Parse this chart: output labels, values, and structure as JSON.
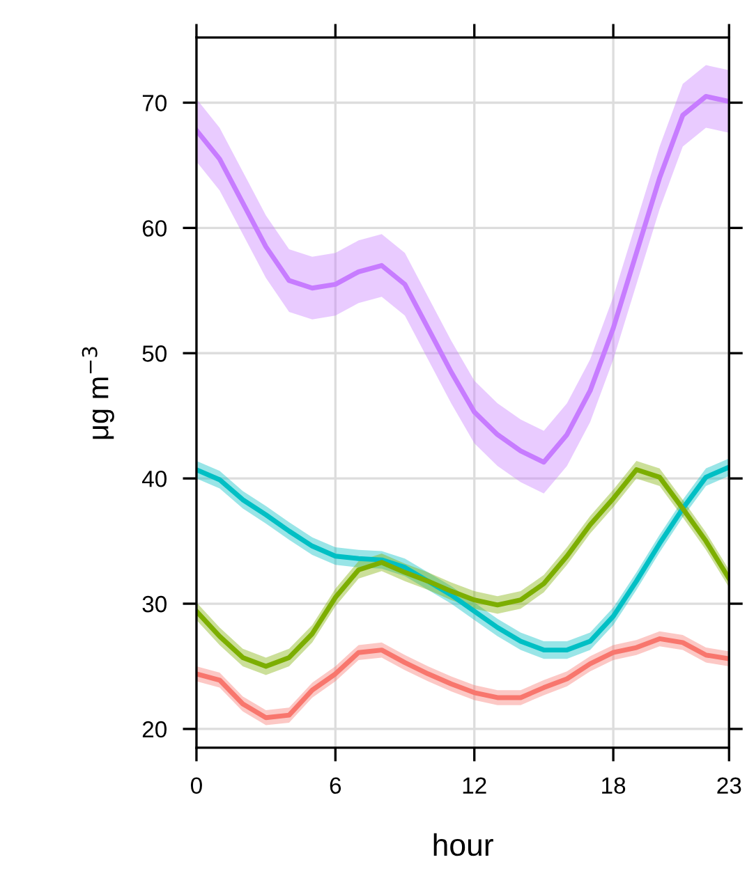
{
  "chart_data": {
    "type": "line",
    "xlabel": "hour",
    "ylabel": "μg m$^{−3}$",
    "x": [
      0,
      1,
      2,
      3,
      4,
      5,
      6,
      7,
      8,
      9,
      10,
      11,
      12,
      13,
      14,
      15,
      16,
      17,
      18,
      19,
      20,
      21,
      22,
      23
    ],
    "xlim": [
      0,
      23
    ],
    "xticks": [
      0,
      6,
      12,
      18,
      23
    ],
    "ylim": [
      18.5,
      75.2
    ],
    "yticks": [
      20,
      30,
      40,
      50,
      60,
      70
    ],
    "grid": true,
    "line_style": "solid",
    "marker": "none",
    "series": [
      {
        "color": "#c77cff",
        "values": [
          67.8,
          65.5,
          62,
          58.5,
          55.8,
          55.2,
          55.5,
          56.5,
          57,
          55.5,
          52,
          48.5,
          45.3,
          43.5,
          42.2,
          41.3,
          43.5,
          47,
          52,
          58,
          64,
          69,
          70.5,
          70.1
        ],
        "lower": [
          65.3,
          63,
          59.5,
          56,
          53.3,
          52.7,
          53,
          54,
          54.5,
          53,
          49.5,
          46,
          42.8,
          41,
          39.7,
          38.8,
          41,
          44.5,
          49.5,
          55.5,
          61.5,
          66.5,
          68,
          67.6
        ],
        "upper": [
          70.3,
          68,
          64.5,
          61,
          58.3,
          57.7,
          58,
          59,
          59.5,
          58,
          54.5,
          51,
          47.8,
          46,
          44.7,
          43.8,
          46,
          49.5,
          54.5,
          60.5,
          66.5,
          71.5,
          73,
          72.6
        ]
      },
      {
        "color": "#00bfc4",
        "values": [
          40.7,
          39.9,
          38.3,
          37.1,
          35.8,
          34.6,
          33.8,
          33.6,
          33.5,
          32.9,
          31.8,
          30.7,
          29.4,
          28.1,
          27,
          26.3,
          26.3,
          27,
          29,
          31.8,
          34.8,
          37.6,
          40.1,
          40.9
        ],
        "lower": [
          40,
          39.2,
          37.6,
          36.4,
          35.1,
          33.9,
          33.1,
          32.9,
          32.8,
          32.2,
          31.1,
          30,
          28.7,
          27.4,
          26.3,
          25.6,
          25.6,
          26.3,
          28.3,
          31.1,
          34.1,
          36.9,
          39.4,
          40.2
        ],
        "upper": [
          41.4,
          40.6,
          39,
          37.8,
          36.5,
          35.3,
          34.5,
          34.3,
          34.2,
          33.6,
          32.5,
          31.4,
          30.1,
          28.8,
          27.7,
          27,
          27,
          27.7,
          29.7,
          32.5,
          35.5,
          38.3,
          40.8,
          41.6
        ]
      },
      {
        "color": "#7cae00",
        "values": [
          29.4,
          27.4,
          25.7,
          25,
          25.7,
          27.6,
          30.5,
          32.7,
          33.3,
          32.5,
          31.8,
          31,
          30.3,
          29.9,
          30.3,
          31.6,
          33.8,
          36.3,
          38.4,
          40.7,
          40.1,
          37.6,
          35,
          32
        ],
        "lower": [
          28.7,
          26.7,
          25,
          24.3,
          25,
          26.9,
          29.8,
          32,
          32.6,
          31.8,
          31.1,
          30.3,
          29.6,
          29.2,
          29.6,
          30.9,
          33.1,
          35.6,
          37.7,
          40,
          39.4,
          36.9,
          34.3,
          31.3
        ],
        "upper": [
          30.1,
          28.1,
          26.4,
          25.7,
          26.4,
          28.3,
          31.2,
          33.4,
          34,
          33.2,
          32.5,
          31.7,
          31,
          30.6,
          31,
          32.3,
          34.5,
          37,
          39.1,
          41.4,
          40.8,
          38.3,
          35.7,
          32.7
        ]
      },
      {
        "color": "#f8766d",
        "values": [
          24.4,
          23.9,
          22,
          20.9,
          21.1,
          23.1,
          24.4,
          26.1,
          26.3,
          25.3,
          24.4,
          23.6,
          22.9,
          22.5,
          22.5,
          23.3,
          24,
          25.2,
          26.1,
          26.5,
          27.2,
          26.9,
          25.9,
          25.6
        ],
        "lower": [
          23.8,
          23.3,
          21.4,
          20.3,
          20.5,
          22.5,
          23.8,
          25.5,
          25.7,
          24.7,
          23.8,
          23,
          22.3,
          21.9,
          21.9,
          22.7,
          23.4,
          24.6,
          25.5,
          25.9,
          26.6,
          26.3,
          25.3,
          25
        ],
        "upper": [
          25,
          24.5,
          22.6,
          21.5,
          21.7,
          23.7,
          25,
          26.7,
          26.9,
          25.9,
          25,
          24.2,
          23.5,
          23.1,
          23.1,
          23.9,
          24.6,
          25.8,
          26.7,
          27.1,
          27.8,
          27.5,
          26.5,
          26.2
        ]
      }
    ]
  }
}
